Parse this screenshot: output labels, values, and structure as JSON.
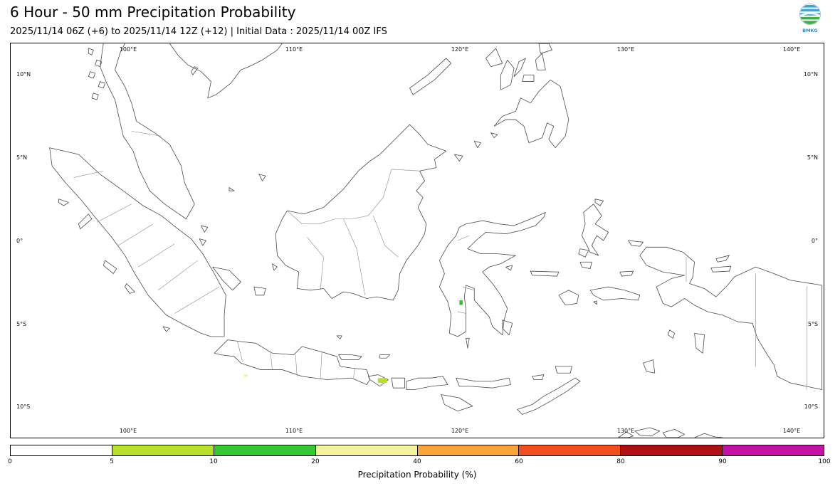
{
  "header": {
    "title": "6 Hour - 50 mm Precipitation Probability",
    "subtitle": "2025/11/14 06Z (+6) to 2025/11/14 12Z (+12) | Initial Data : 2025/11/14 00Z IFS"
  },
  "logo": {
    "text": "BMKG"
  },
  "map": {
    "lon_ticks": [
      "100°E",
      "110°E",
      "120°E",
      "130°E",
      "140°E"
    ],
    "lat_ticks": [
      "10°N",
      "5°N",
      "0°",
      "5°S",
      "10°S"
    ],
    "coastline_color": "#4a4a4a",
    "admin_border_color": "#8a8a8a",
    "spots": [
      {
        "lon": 115.35,
        "lat": -8.45,
        "w": 0.55,
        "h": 0.3,
        "color": "#b8e02a"
      },
      {
        "lon": 120.1,
        "lat": -3.75,
        "w": 0.2,
        "h": 0.28,
        "color": "#35c832"
      },
      {
        "lon": 107.1,
        "lat": -8.15,
        "w": 0.22,
        "h": 0.14,
        "color": "#f2f2a0"
      }
    ]
  },
  "colorbar": {
    "label": "Precipitation Probability (%)",
    "tick_labels": [
      "0",
      "5",
      "10",
      "20",
      "40",
      "60",
      "80",
      "90",
      "100"
    ],
    "segment_colors": [
      "#ffffff",
      "#b8e02a",
      "#35c832",
      "#f2f2a0",
      "#fba43c",
      "#f14f20",
      "#ae1016",
      "#c412a6"
    ]
  },
  "chart_data": {
    "type": "heatmap",
    "title": "6 Hour - 50 mm Precipitation Probability",
    "valid_period": "2025/11/14 06Z (+6) to 2025/11/14 12Z (+12)",
    "initial_data": "2025/11/14 00Z IFS",
    "region": {
      "lon_range": [
        93,
        142
      ],
      "lat_range": [
        -11.9,
        11.9
      ]
    },
    "colorbar_label": "Precipitation Probability (%)",
    "colorbar_ticks": [
      0,
      5,
      10,
      20,
      40,
      60,
      80,
      90,
      100
    ],
    "colorbar_colors": [
      "#ffffff",
      "#b8e02a",
      "#35c832",
      "#f2f2a0",
      "#fba43c",
      "#f14f20",
      "#ae1016",
      "#c412a6"
    ],
    "notable_values": [
      {
        "lon": 115.35,
        "lat": -8.45,
        "probability_bin_percent": "5-10"
      },
      {
        "lon": 120.1,
        "lat": -3.75,
        "probability_bin_percent": "10-20"
      },
      {
        "lon": 107.1,
        "lat": -8.15,
        "probability_bin_percent": "20-40"
      }
    ]
  }
}
